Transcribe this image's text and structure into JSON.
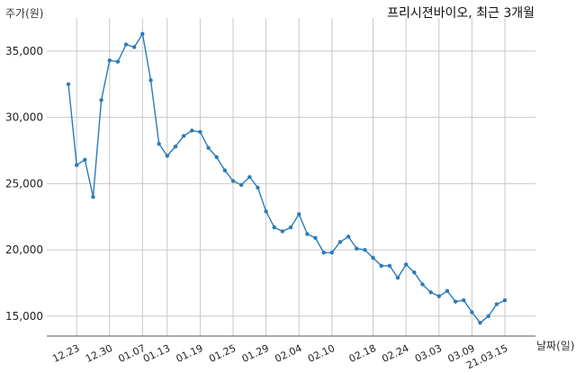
{
  "chart_data": {
    "type": "line",
    "title": "프리시젼바이오, 최근 3개월",
    "xlabel": "날짜(일)",
    "ylabel": "주가(원)",
    "grid": true,
    "ylim": [
      13500,
      37500
    ],
    "y_ticks": [
      15000,
      20000,
      25000,
      30000,
      35000
    ],
    "y_tick_labels": [
      "15,000",
      "20,000",
      "25,000",
      "30,000",
      "35,000"
    ],
    "x_tick_labels": [
      "12.23",
      "12.30",
      "01.07",
      "01.13",
      "01.19",
      "01.25",
      "01.29",
      "02.04",
      "02.10",
      "02.18",
      "02.24",
      "03.03",
      "03.09",
      "21.03.15"
    ],
    "x_tick_index": [
      1,
      5,
      9,
      12,
      16,
      20,
      24,
      28,
      32,
      37,
      41,
      45,
      49,
      53
    ],
    "color": "#2b7bb9",
    "values": [
      32500,
      26400,
      26800,
      24000,
      31300,
      34300,
      34200,
      35500,
      35300,
      36300,
      32800,
      28000,
      27100,
      27800,
      28600,
      29000,
      28900,
      27700,
      27000,
      26000,
      25200,
      24900,
      25500,
      24700,
      22900,
      21700,
      21400,
      21700,
      22700,
      21200,
      20900,
      19800,
      19800,
      20600,
      21000,
      20100,
      20000,
      19400,
      18800,
      18800,
      17900,
      18900,
      18300,
      17400,
      16800,
      16500,
      16900,
      16100,
      16200,
      15300,
      14500,
      15000,
      15900,
      16200
    ]
  }
}
